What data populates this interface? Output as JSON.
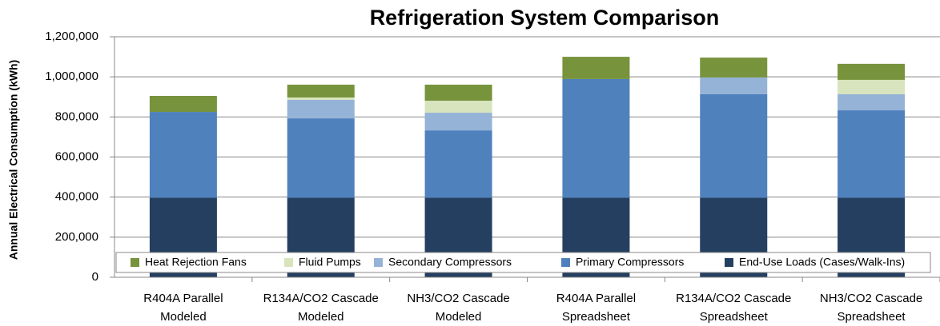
{
  "chart_data": {
    "type": "stacked_bar",
    "title": "Refrigeration System Comparison",
    "y_label": "Annual Electrical Consumption  (kWh)",
    "categories": [
      [
        "R404A Parallel",
        "Modeled"
      ],
      [
        "R134A/CO2 Cascade",
        "Modeled"
      ],
      [
        "NH3/CO2 Cascade",
        "Modeled"
      ],
      [
        "R404A Parallel",
        "Spreadsheet"
      ],
      [
        "R134A/CO2 Cascade",
        "Spreadsheet"
      ],
      [
        "NH3/CO2 Cascade",
        "Spreadsheet"
      ]
    ],
    "series": [
      {
        "name": "End-Use Loads (Cases/Walk-Ins)",
        "color": "#243f60",
        "values": [
          397000,
          397000,
          397000,
          397000,
          397000,
          397000
        ]
      },
      {
        "name": "Primary Compressors",
        "color": "#4f81bd",
        "values": [
          428000,
          396000,
          336000,
          592000,
          516000,
          436000
        ]
      },
      {
        "name": "Secondary Compressors",
        "color": "#95b3d7",
        "values": [
          0,
          92000,
          88000,
          0,
          84000,
          80000
        ]
      },
      {
        "name": "Fluid Pumps",
        "color": "#d7e4bd",
        "values": [
          0,
          12000,
          60000,
          0,
          0,
          72000
        ]
      },
      {
        "name": "Heat Rejection Fans",
        "color": "#77933c",
        "values": [
          80000,
          64000,
          80000,
          111000,
          99000,
          80000
        ]
      }
    ],
    "ylim": [
      0,
      1200000
    ],
    "yticks": [
      0,
      {
        "value": 200000,
        "label": "200,000"
      },
      {
        "value": 400000,
        "label": "400,000"
      },
      {
        "value": 600000,
        "label": "600,000"
      },
      {
        "value": 800000,
        "label": "800,000"
      },
      {
        "value": 1000000,
        "label": "1,000,000"
      },
      {
        "value": 1200000,
        "label": "1,200,000"
      }
    ],
    "grid": true,
    "legend": "bottom"
  }
}
